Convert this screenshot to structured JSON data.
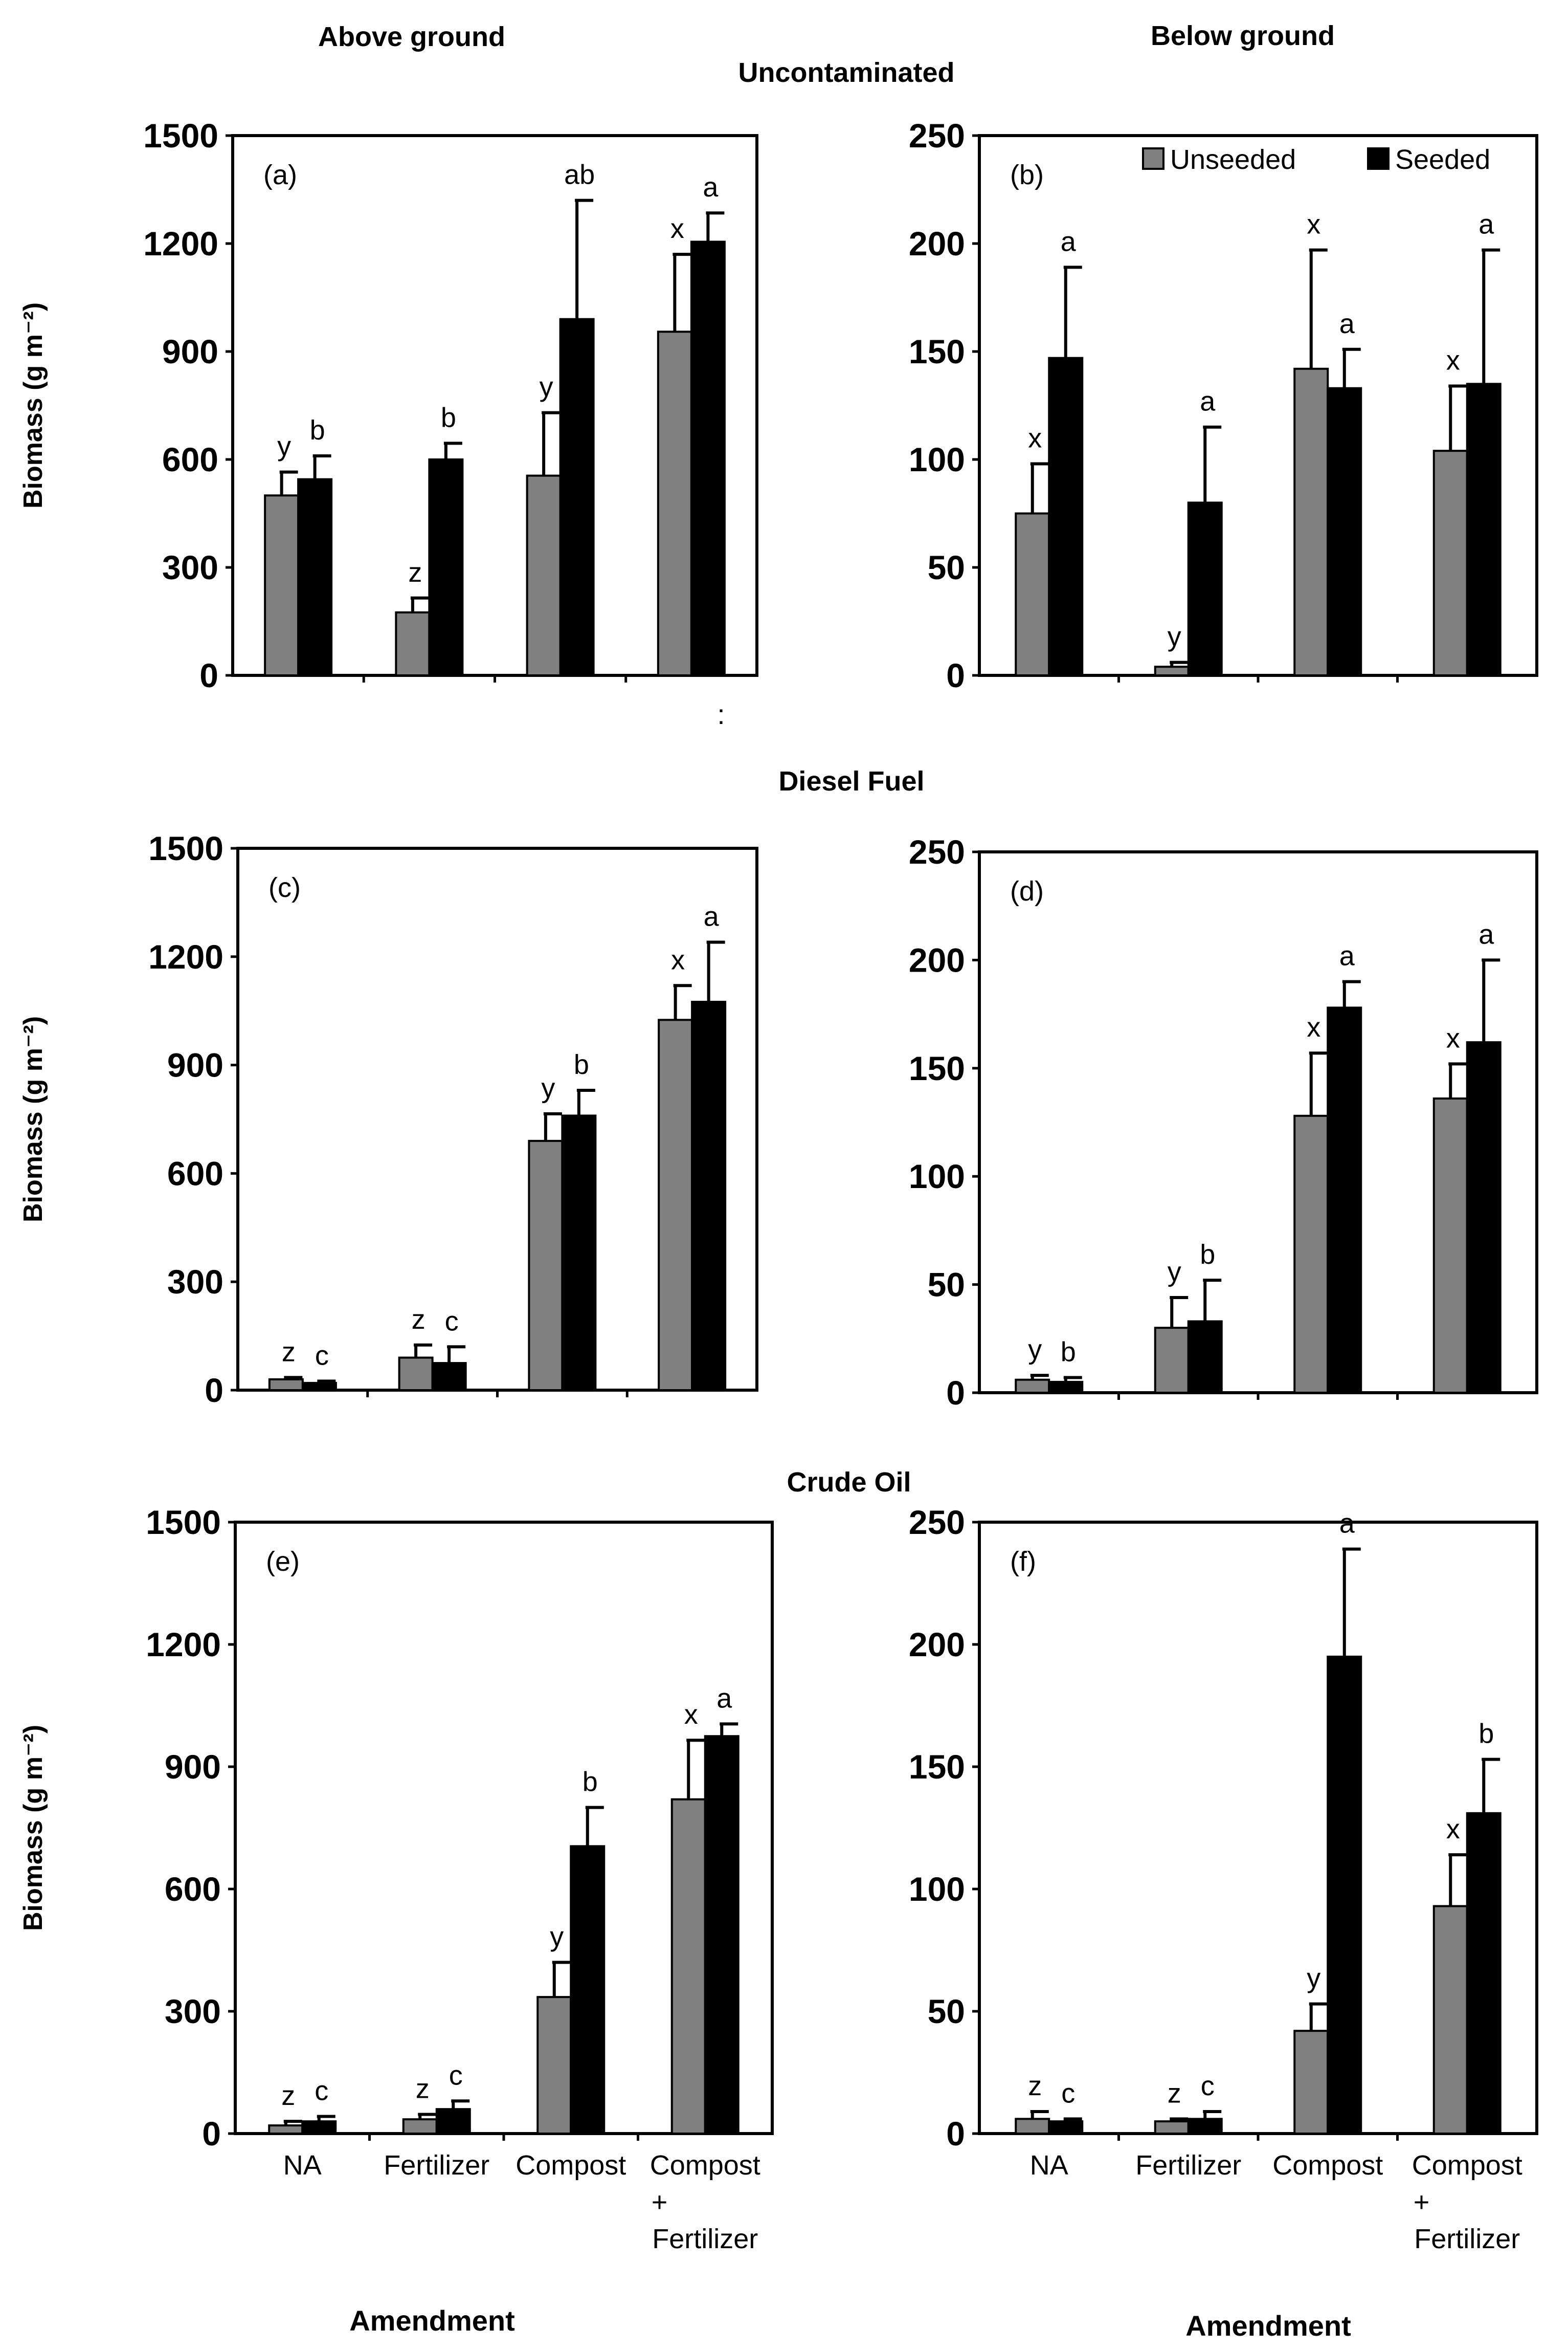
{
  "figure": {
    "column_titles": [
      "Above ground",
      "Below ground"
    ],
    "section_titles": [
      "Uncontaminated",
      "Diesel Fuel",
      "Crude Oil"
    ],
    "y_axis_label": "Biomass (g m⁻²)",
    "x_axis_label": "Amendment",
    "legend": [
      {
        "name": "Unseeded",
        "color": "#808080"
      },
      {
        "name": "Seeded",
        "color": "#000000"
      }
    ],
    "stray_mark": ":"
  },
  "chart_data": [
    {
      "type": "bar",
      "panel": "(a)",
      "section": "Uncontaminated",
      "column": "Above ground",
      "categories": [
        "NA",
        "Fertilizer",
        "Compost",
        "Compost + Fertilizer"
      ],
      "ylim": [
        0,
        1500
      ],
      "yticks": [
        0,
        300,
        600,
        900,
        1200,
        1500
      ],
      "series": [
        {
          "name": "Unseeded",
          "values": [
            500,
            175,
            555,
            955
          ],
          "errors": [
            65,
            40,
            175,
            215
          ],
          "letters": [
            "y",
            "z",
            "y",
            "x"
          ]
        },
        {
          "name": "Seeded",
          "values": [
            545,
            600,
            990,
            1205
          ],
          "errors": [
            65,
            45,
            330,
            80
          ],
          "letters": [
            "b",
            "b",
            "ab",
            "a"
          ]
        }
      ]
    },
    {
      "type": "bar",
      "panel": "(b)",
      "section": "Uncontaminated",
      "column": "Below ground",
      "categories": [
        "NA",
        "Fertilizer",
        "Compost",
        "Compost + Fertilizer"
      ],
      "ylim": [
        0,
        250
      ],
      "yticks": [
        0,
        50,
        100,
        150,
        200,
        250
      ],
      "series": [
        {
          "name": "Unseeded",
          "values": [
            75,
            4,
            142,
            104
          ],
          "errors": [
            23,
            2,
            55,
            30
          ],
          "letters": [
            "x",
            "y",
            "x",
            "x"
          ]
        },
        {
          "name": "Seeded",
          "values": [
            147,
            80,
            133,
            135
          ],
          "errors": [
            42,
            35,
            18,
            62
          ],
          "letters": [
            "a",
            "a",
            "a",
            "a"
          ]
        }
      ]
    },
    {
      "type": "bar",
      "panel": "(c)",
      "section": "Diesel Fuel",
      "column": "Above ground",
      "categories": [
        "NA",
        "Fertilizer",
        "Compost",
        "Compost + Fertilizer"
      ],
      "ylim": [
        0,
        1500
      ],
      "yticks": [
        0,
        300,
        600,
        900,
        1200,
        1500
      ],
      "series": [
        {
          "name": "Unseeded",
          "values": [
            30,
            90,
            690,
            1025
          ],
          "errors": [
            5,
            35,
            75,
            95
          ],
          "letters": [
            "z",
            "z",
            "y",
            "x"
          ]
        },
        {
          "name": "Seeded",
          "values": [
            20,
            75,
            760,
            1075
          ],
          "errors": [
            5,
            45,
            70,
            165
          ],
          "letters": [
            "c",
            "c",
            "b",
            "a"
          ]
        }
      ]
    },
    {
      "type": "bar",
      "panel": "(d)",
      "section": "Diesel Fuel",
      "column": "Below ground",
      "categories": [
        "NA",
        "Fertilizer",
        "Compost",
        "Compost + Fertilizer"
      ],
      "ylim": [
        0,
        250
      ],
      "yticks": [
        0,
        50,
        100,
        150,
        200,
        250
      ],
      "series": [
        {
          "name": "Unseeded",
          "values": [
            6,
            30,
            128,
            136
          ],
          "errors": [
            2,
            14,
            29,
            16
          ],
          "letters": [
            "y",
            "y",
            "x",
            "x"
          ]
        },
        {
          "name": "Seeded",
          "values": [
            5,
            33,
            178,
            162
          ],
          "errors": [
            2,
            19,
            12,
            38
          ],
          "letters": [
            "b",
            "b",
            "a",
            "a"
          ]
        }
      ]
    },
    {
      "type": "bar",
      "panel": "(e)",
      "section": "Crude Oil",
      "column": "Above ground",
      "categories": [
        "NA",
        "Fertilizer",
        "Compost",
        "Compost + Fertilizer"
      ],
      "ylim": [
        0,
        1500
      ],
      "yticks": [
        0,
        300,
        600,
        900,
        1200,
        1500
      ],
      "series": [
        {
          "name": "Unseeded",
          "values": [
            20,
            35,
            335,
            820
          ],
          "errors": [
            10,
            12,
            85,
            145
          ],
          "letters": [
            "z",
            "z",
            "y",
            "x"
          ]
        },
        {
          "name": "Seeded",
          "values": [
            30,
            60,
            705,
            975
          ],
          "errors": [
            12,
            20,
            95,
            30
          ],
          "letters": [
            "c",
            "c",
            "b",
            "a"
          ]
        }
      ]
    },
    {
      "type": "bar",
      "panel": "(f)",
      "section": "Crude Oil",
      "column": "Below ground",
      "categories": [
        "NA",
        "Fertilizer",
        "Compost",
        "Compost + Fertilizer"
      ],
      "ylim": [
        0,
        250
      ],
      "yticks": [
        0,
        50,
        100,
        150,
        200,
        250
      ],
      "series": [
        {
          "name": "Unseeded",
          "values": [
            6,
            5,
            42,
            93
          ],
          "errors": [
            3,
            1,
            11,
            21
          ],
          "letters": [
            "z",
            "z",
            "y",
            "x"
          ]
        },
        {
          "name": "Seeded",
          "values": [
            5,
            6,
            195,
            131
          ],
          "errors": [
            1,
            3,
            44,
            22
          ],
          "letters": [
            "c",
            "c",
            "a",
            "b"
          ]
        }
      ]
    }
  ]
}
